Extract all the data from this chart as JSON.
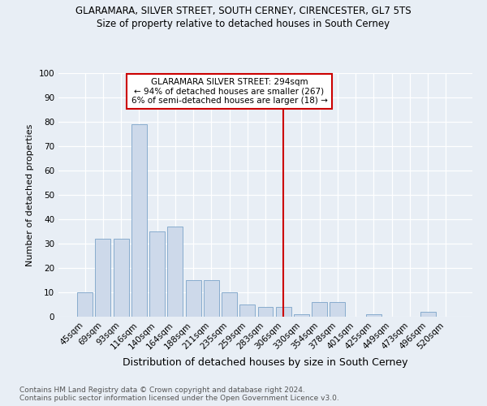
{
  "title": "GLARAMARA, SILVER STREET, SOUTH CERNEY, CIRENCESTER, GL7 5TS",
  "subtitle": "Size of property relative to detached houses in South Cerney",
  "xlabel": "Distribution of detached houses by size in South Cerney",
  "ylabel": "Number of detached properties",
  "footer_line1": "Contains HM Land Registry data © Crown copyright and database right 2024.",
  "footer_line2": "Contains public sector information licensed under the Open Government Licence v3.0.",
  "categories": [
    "45sqm",
    "69sqm",
    "93sqm",
    "116sqm",
    "140sqm",
    "164sqm",
    "188sqm",
    "211sqm",
    "235sqm",
    "259sqm",
    "283sqm",
    "306sqm",
    "330sqm",
    "354sqm",
    "378sqm",
    "401sqm",
    "425sqm",
    "449sqm",
    "473sqm",
    "496sqm",
    "520sqm"
  ],
  "values": [
    10,
    32,
    32,
    79,
    35,
    37,
    15,
    15,
    10,
    5,
    4,
    4,
    1,
    6,
    6,
    0,
    1,
    0,
    0,
    2,
    0
  ],
  "bar_color": "#cdd9ea",
  "bar_edge_color": "#7ba3c8",
  "annotation_text": "GLARAMARA SILVER STREET: 294sqm\n← 94% of detached houses are smaller (267)\n6% of semi-detached houses are larger (18) →",
  "vline_x_index": 11.0,
  "vline_color": "#cc0000",
  "annotation_box_color": "#cc0000",
  "background_color": "#e8eef5",
  "ylim": [
    0,
    100
  ],
  "yticks": [
    0,
    10,
    20,
    30,
    40,
    50,
    60,
    70,
    80,
    90,
    100
  ],
  "title_fontsize": 8.5,
  "subtitle_fontsize": 8.5,
  "ylabel_fontsize": 8,
  "xlabel_fontsize": 9,
  "tick_fontsize": 7.5,
  "footer_fontsize": 6.5
}
